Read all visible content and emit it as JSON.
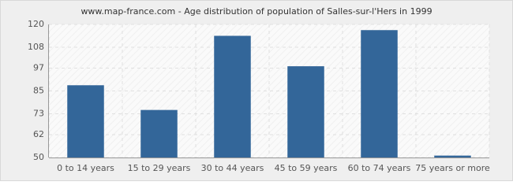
{
  "chart_data": {
    "type": "bar",
    "title": "www.map-france.com - Age distribution of population of Salles-sur-l'Hers in 1999",
    "categories": [
      "0 to 14 years",
      "15 to 29 years",
      "30 to 44 years",
      "45 to 59 years",
      "60 to 74 years",
      "75 years or more"
    ],
    "values": [
      88,
      75,
      114,
      98,
      117,
      51
    ],
    "color": "#336699",
    "ylim": [
      50,
      120
    ],
    "yticks": [
      50,
      62,
      73,
      85,
      97,
      108,
      120
    ],
    "grid": true
  }
}
